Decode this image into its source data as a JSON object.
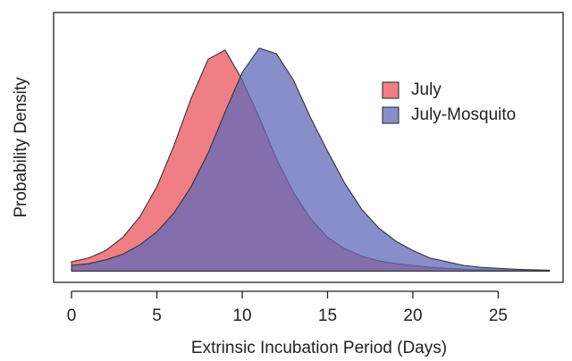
{
  "chart_data": {
    "type": "area",
    "x_label": "Extrinsic Incubation Period (Days)",
    "y_label": "Probability Density",
    "x": [
      0,
      1,
      2,
      3,
      4,
      5,
      6,
      7,
      8,
      9,
      10,
      11,
      12,
      13,
      14,
      15,
      16,
      17,
      18,
      19,
      20,
      21,
      22,
      23,
      24,
      25,
      26,
      27,
      28
    ],
    "series": [
      {
        "name": "July",
        "color": "#f07f85",
        "values": [
          0.005,
          0.007,
          0.011,
          0.018,
          0.029,
          0.045,
          0.067,
          0.092,
          0.113,
          0.118,
          0.102,
          0.082,
          0.06,
          0.042,
          0.028,
          0.018,
          0.012,
          0.008,
          0.0055,
          0.004,
          0.003,
          0.002,
          0.0015,
          0.001,
          0.0007,
          0.0005,
          0.0003,
          0.0002,
          0.0001
        ]
      },
      {
        "name": "July-Mosquito",
        "color": "#6068b8",
        "values": [
          0.003,
          0.004,
          0.006,
          0.009,
          0.014,
          0.021,
          0.031,
          0.045,
          0.063,
          0.085,
          0.106,
          0.119,
          0.116,
          0.102,
          0.082,
          0.064,
          0.047,
          0.033,
          0.023,
          0.016,
          0.011,
          0.007,
          0.005,
          0.003,
          0.002,
          0.0015,
          0.001,
          0.0007,
          0.0005
        ]
      }
    ],
    "xlim": [
      -1.05,
      28.8
    ],
    "ylim": [
      -0.006,
      0.138
    ],
    "xticks": [
      0,
      5,
      10,
      15,
      20,
      25
    ],
    "legend": "top-right"
  }
}
